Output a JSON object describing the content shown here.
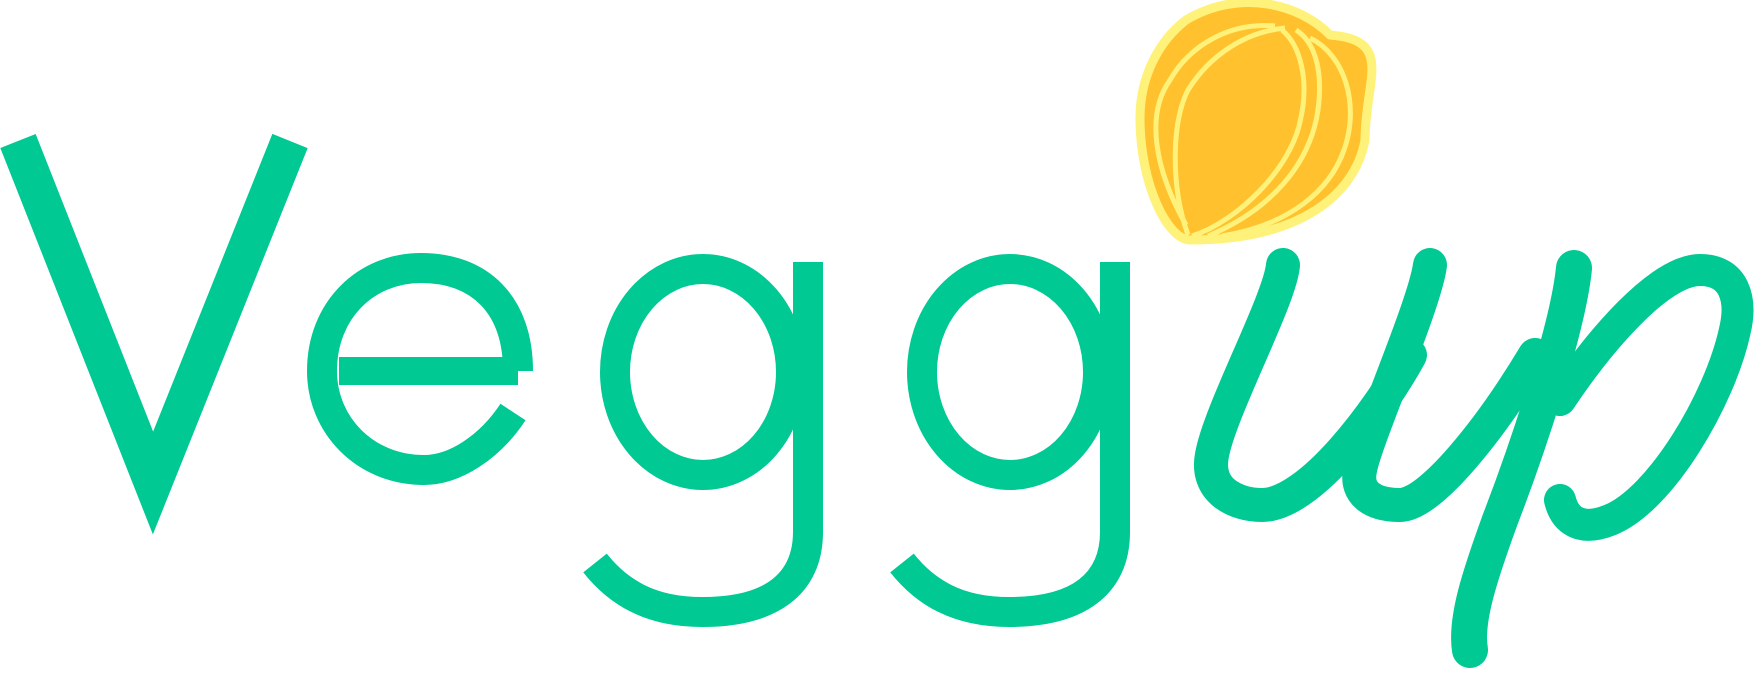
{
  "logo": {
    "wordmark": "Veggup",
    "wordmark_main": "Vegg",
    "wordmark_script": "up",
    "colors": {
      "green": "#00C993",
      "seed_fill": "#FFC12E",
      "seed_outline": "#FFF27A"
    },
    "icon": "seed-icon"
  }
}
